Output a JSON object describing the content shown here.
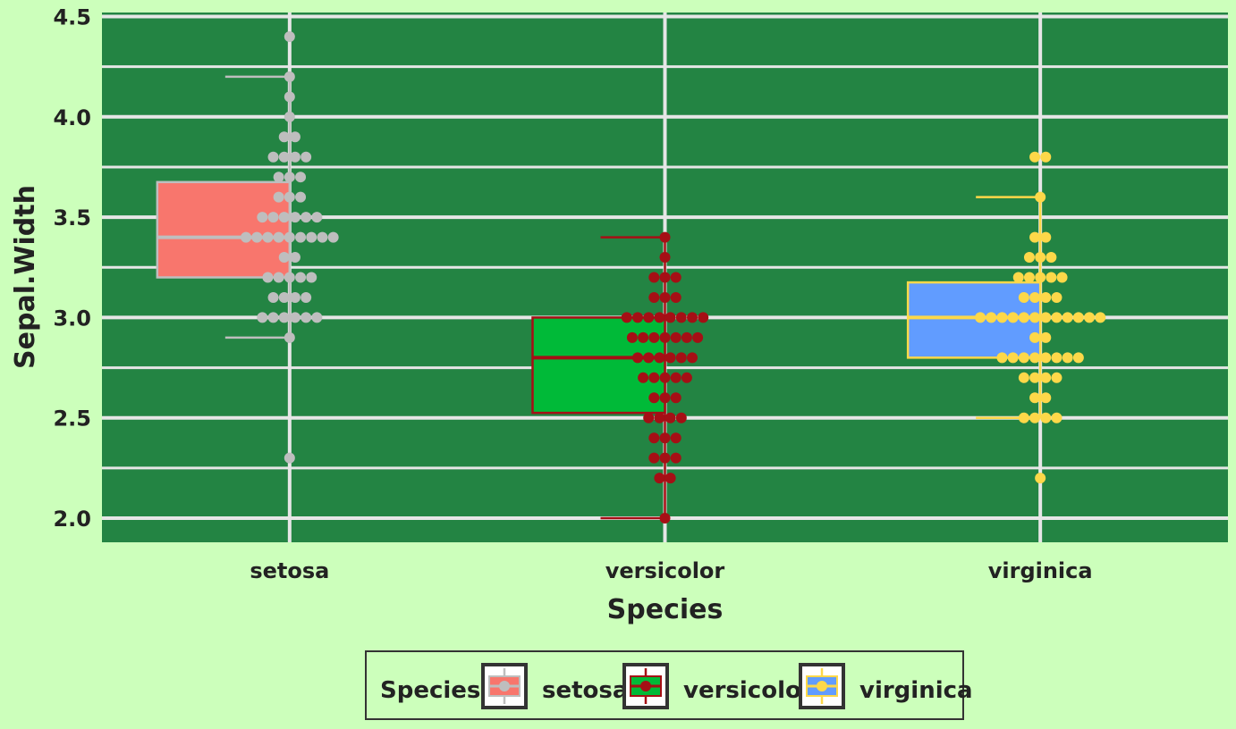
{
  "chart_data": {
    "type": "box",
    "xlabel": "Species",
    "ylabel": "Sepal.Width",
    "ylim": [
      1.88,
      4.52
    ],
    "yticks": [
      "2.0",
      "2.5",
      "3.0",
      "3.5",
      "4.0",
      "4.5"
    ],
    "grid": true,
    "legend": {
      "title": "Species",
      "position": "bottom"
    },
    "categories": [
      "setosa",
      "versicolor",
      "virginica"
    ],
    "colors": {
      "panel": "#238443",
      "grid": "#e6e6e6",
      "background": "#ccffbb"
    },
    "series": [
      {
        "name": "setosa",
        "fill": "#f8766d",
        "line_color": "#bebebe",
        "min": 2.9,
        "q1": 3.2,
        "median": 3.4,
        "q3": 3.675,
        "max": 4.2,
        "points": [
          {
            "y": 2.3,
            "n": 1
          },
          {
            "y": 2.9,
            "n": 1
          },
          {
            "y": 3.0,
            "n": 6
          },
          {
            "y": 3.1,
            "n": 4
          },
          {
            "y": 3.2,
            "n": 5
          },
          {
            "y": 3.3,
            "n": 2
          },
          {
            "y": 3.4,
            "n": 9
          },
          {
            "y": 3.5,
            "n": 6
          },
          {
            "y": 3.6,
            "n": 3
          },
          {
            "y": 3.7,
            "n": 3
          },
          {
            "y": 3.8,
            "n": 4
          },
          {
            "y": 3.9,
            "n": 2
          },
          {
            "y": 4.0,
            "n": 1
          },
          {
            "y": 4.1,
            "n": 1
          },
          {
            "y": 4.2,
            "n": 1
          },
          {
            "y": 4.4,
            "n": 1
          }
        ]
      },
      {
        "name": "versicolor",
        "fill": "#00ba38",
        "line_color": "#a50f15",
        "min": 2.0,
        "q1": 2.525,
        "median": 2.8,
        "q3": 3.0,
        "max": 3.4,
        "points": [
          {
            "y": 2.0,
            "n": 1
          },
          {
            "y": 2.2,
            "n": 2
          },
          {
            "y": 2.3,
            "n": 3
          },
          {
            "y": 2.4,
            "n": 3
          },
          {
            "y": 2.5,
            "n": 4
          },
          {
            "y": 2.6,
            "n": 3
          },
          {
            "y": 2.7,
            "n": 5
          },
          {
            "y": 2.8,
            "n": 6
          },
          {
            "y": 2.9,
            "n": 7
          },
          {
            "y": 3.0,
            "n": 8
          },
          {
            "y": 3.1,
            "n": 3
          },
          {
            "y": 3.2,
            "n": 3
          },
          {
            "y": 3.3,
            "n": 1
          },
          {
            "y": 3.4,
            "n": 1
          }
        ]
      },
      {
        "name": "virginica",
        "fill": "#619cff",
        "line_color": "#fdd849",
        "min": 2.5,
        "q1": 2.8,
        "median": 3.0,
        "q3": 3.175,
        "max": 3.6,
        "points": [
          {
            "y": 2.2,
            "n": 1
          },
          {
            "y": 2.5,
            "n": 4
          },
          {
            "y": 2.6,
            "n": 2
          },
          {
            "y": 2.7,
            "n": 4
          },
          {
            "y": 2.8,
            "n": 8
          },
          {
            "y": 2.9,
            "n": 2
          },
          {
            "y": 3.0,
            "n": 12
          },
          {
            "y": 3.1,
            "n": 4
          },
          {
            "y": 3.2,
            "n": 5
          },
          {
            "y": 3.3,
            "n": 3
          },
          {
            "y": 3.4,
            "n": 2
          },
          {
            "y": 3.6,
            "n": 1
          },
          {
            "y": 3.8,
            "n": 2
          }
        ]
      }
    ]
  }
}
